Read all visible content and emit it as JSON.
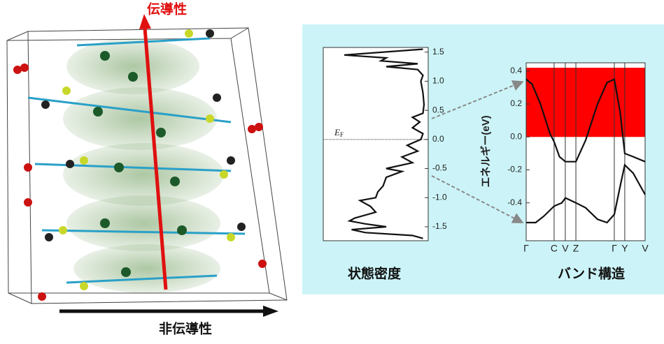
{
  "structure": {
    "conductive_label": "伝導性",
    "nonconductive_label": "非伝導性"
  },
  "chart_data": [
    {
      "type": "line",
      "orientation": "vertical",
      "title": "状態密度",
      "color": "#111111",
      "ylim": [
        -1.74,
        1.58
      ],
      "xlim": [
        0,
        1
      ],
      "yticks": [
        {
          "value": 1.5,
          "label": "1.5"
        },
        {
          "value": 1,
          "label": "1.0"
        },
        {
          "value": 0.5,
          "label": "0.5"
        },
        {
          "value": 0,
          "label": "0.0"
        },
        {
          "value": -0.5,
          "label": "-0.5"
        },
        {
          "value": -1,
          "label": "-1.0"
        },
        {
          "value": -1.5,
          "label": "-1.5"
        }
      ],
      "reference_line": {
        "value": 0,
        "label": "E",
        "label_sub": "F"
      },
      "x": [
        0.95,
        0.2,
        0.6,
        0.55,
        0.9,
        0.6,
        0.9,
        0.95,
        0.93,
        0.95,
        0.96,
        0.95,
        0.85,
        0.92,
        0.85,
        0.95,
        0.93,
        0.8,
        0.9,
        0.75,
        0.85,
        0.6,
        0.75,
        0.6,
        0.57,
        0.52,
        0.5,
        0.35,
        0.45,
        0.5,
        0.3,
        0.25,
        0.4,
        0.6,
        0.27,
        0.4,
        0.85,
        0.95
      ],
      "values": [
        1.55,
        1.45,
        1.4,
        1.35,
        1.3,
        1.25,
        1.2,
        1.1,
        1.0,
        0.8,
        0.6,
        0.45,
        0.38,
        0.3,
        0.2,
        0.1,
        0.0,
        -0.1,
        -0.2,
        -0.3,
        -0.4,
        -0.5,
        -0.55,
        -0.65,
        -0.8,
        -0.9,
        -1.0,
        -1.05,
        -1.15,
        -1.25,
        -1.35,
        -1.4,
        -1.45,
        -1.5,
        -1.55,
        -1.6,
        -1.65,
        -1.7
      ]
    },
    {
      "type": "line",
      "title": "バンド構造",
      "y_label": "エネルギー(eV)",
      "color": "#111111",
      "ylim": [
        -0.63,
        0.45
      ],
      "xlim": [
        0,
        1
      ],
      "yticks": [
        0.4,
        0.2,
        {
          "value": 0,
          "label": "0.0"
        },
        -0.2,
        -0.4
      ],
      "xticks": [
        {
          "value": 0,
          "label": "Γ"
        },
        {
          "value": 0.235,
          "label": "C"
        },
        {
          "value": 0.329,
          "label": "V"
        },
        {
          "value": 0.418,
          "label": "Z"
        },
        {
          "value": 0.741,
          "label": "Γ"
        },
        {
          "value": 0.829,
          "label": "Y"
        },
        {
          "value": 1,
          "label": "V"
        }
      ],
      "highlight": {
        "range": [
          0,
          0.42
        ],
        "color": "#ff0000"
      },
      "series": [
        {
          "x": [
            0,
            0.05,
            0.12,
            0.2,
            0.235,
            0.28,
            0.33,
            0.418,
            0.5,
            0.6,
            0.68,
            0.741,
            0.79,
            0.829,
            0.9,
            1
          ],
          "values": [
            0.35,
            0.32,
            0.2,
            0.02,
            -0.03,
            -0.12,
            -0.15,
            -0.15,
            -0.02,
            0.2,
            0.33,
            0.35,
            0.15,
            -0.1,
            -0.12,
            -0.15
          ]
        },
        {
          "x": [
            0,
            0.08,
            0.15,
            0.235,
            0.3,
            0.33,
            0.418,
            0.5,
            0.6,
            0.68,
            0.741,
            0.79,
            0.829,
            0.9,
            1
          ],
          "values": [
            -0.52,
            -0.52,
            -0.48,
            -0.42,
            -0.4,
            -0.37,
            -0.4,
            -0.43,
            -0.5,
            -0.52,
            -0.47,
            -0.3,
            -0.17,
            -0.22,
            -0.35
          ]
        }
      ]
    }
  ]
}
